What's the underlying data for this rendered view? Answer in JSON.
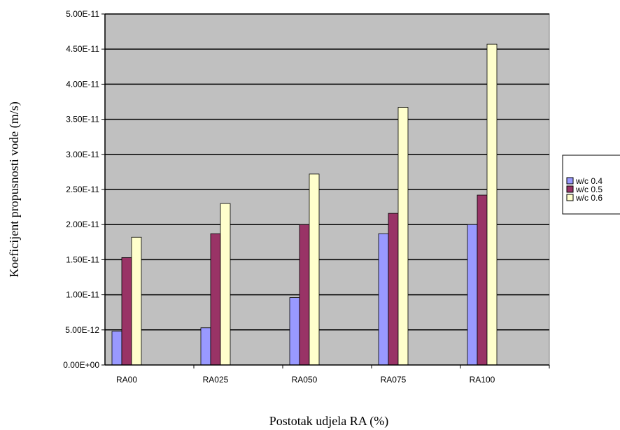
{
  "chart_data": {
    "type": "bar",
    "title": "",
    "xlabel": "Postotak udjela RA (%)",
    "ylabel": "Koeficijent propusnosti vode (m/s)",
    "categories": [
      "RA00",
      "RA025",
      "RA050",
      "RA075",
      "RA100"
    ],
    "ylim": [
      0,
      5e-11
    ],
    "yticks": [
      "0.00E+00",
      "5.00E-12",
      "1.00E-11",
      "1.50E-11",
      "2.00E-11",
      "2.50E-11",
      "3.00E-11",
      "3.50E-11",
      "4.00E-11",
      "4.50E-11",
      "5.00E-11"
    ],
    "grid": true,
    "legend_position": "right",
    "series": [
      {
        "name": "w/c 0.4",
        "color": "#9999ff",
        "values": [
          4.8e-12,
          5.3e-12,
          9.6e-12,
          1.87e-11,
          2e-11
        ]
      },
      {
        "name": "w/c 0.5",
        "color": "#993366",
        "values": [
          1.53e-11,
          1.87e-11,
          2e-11,
          2.16e-11,
          2.42e-11
        ]
      },
      {
        "name": "w/c 0.6",
        "color": "#ffffcc",
        "values": [
          1.82e-11,
          2.3e-11,
          2.72e-11,
          3.67e-11,
          4.57e-11
        ]
      }
    ],
    "plot_background": "#c0c0c0"
  }
}
